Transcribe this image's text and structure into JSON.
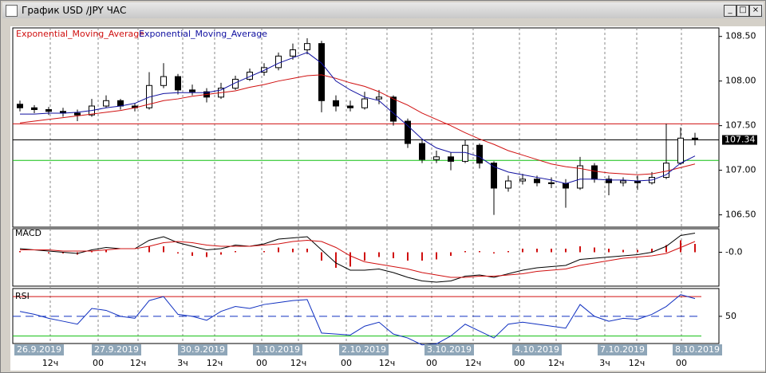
{
  "window": {
    "title": "График USD /JPY ЧАС"
  },
  "chart_data": [
    {
      "type": "candlestick",
      "ohlc": [
        [
          107.74,
          107.78,
          107.66,
          107.7
        ],
        [
          107.7,
          107.73,
          107.64,
          107.68
        ],
        [
          107.68,
          107.71,
          107.62,
          107.66
        ],
        [
          107.66,
          107.7,
          107.6,
          107.64
        ],
        [
          107.64,
          107.68,
          107.55,
          107.62
        ],
        [
          107.62,
          107.8,
          107.6,
          107.72
        ],
        [
          107.72,
          107.84,
          107.7,
          107.78
        ],
        [
          107.78,
          107.8,
          107.68,
          107.72
        ],
        [
          107.72,
          107.75,
          107.66,
          107.7
        ],
        [
          107.7,
          108.1,
          107.68,
          107.95
        ],
        [
          107.95,
          108.2,
          107.92,
          108.05
        ],
        [
          108.05,
          108.08,
          107.85,
          107.9
        ],
        [
          107.9,
          107.96,
          107.84,
          107.88
        ],
        [
          107.88,
          107.92,
          107.76,
          107.82
        ],
        [
          107.82,
          107.98,
          107.8,
          107.92
        ],
        [
          107.92,
          108.06,
          107.9,
          108.02
        ],
        [
          108.02,
          108.14,
          108.0,
          108.1
        ],
        [
          108.1,
          108.2,
          108.06,
          108.15
        ],
        [
          108.15,
          108.32,
          108.12,
          108.28
        ],
        [
          108.28,
          108.42,
          108.24,
          108.35
        ],
        [
          108.35,
          108.48,
          108.3,
          108.42
        ],
        [
          108.42,
          108.45,
          107.65,
          107.78
        ],
        [
          107.78,
          107.84,
          107.66,
          107.72
        ],
        [
          107.72,
          107.78,
          107.66,
          107.7
        ],
        [
          107.7,
          107.88,
          107.68,
          107.8
        ],
        [
          107.8,
          107.9,
          107.74,
          107.82
        ],
        [
          107.82,
          107.84,
          107.5,
          107.55
        ],
        [
          107.55,
          107.58,
          107.25,
          107.3
        ],
        [
          107.3,
          107.34,
          107.08,
          107.12
        ],
        [
          107.12,
          107.22,
          107.08,
          107.15
        ],
        [
          107.15,
          107.2,
          107.0,
          107.1
        ],
        [
          107.1,
          107.34,
          107.08,
          107.28
        ],
        [
          107.28,
          107.3,
          107.02,
          107.08
        ],
        [
          107.08,
          107.1,
          106.5,
          106.8
        ],
        [
          106.8,
          106.94,
          106.76,
          106.88
        ],
        [
          106.88,
          106.96,
          106.84,
          106.9
        ],
        [
          106.9,
          106.94,
          106.82,
          106.86
        ],
        [
          106.86,
          106.92,
          106.8,
          106.85
        ],
        [
          106.85,
          106.9,
          106.58,
          106.8
        ],
        [
          106.8,
          107.15,
          106.78,
          107.05
        ],
        [
          107.05,
          107.08,
          106.86,
          106.9
        ],
        [
          106.9,
          106.94,
          106.72,
          106.86
        ],
        [
          106.86,
          106.92,
          106.82,
          106.88
        ],
        [
          106.88,
          106.94,
          106.78,
          106.86
        ],
        [
          106.86,
          106.98,
          106.84,
          106.92
        ],
        [
          106.92,
          107.52,
          106.9,
          107.08
        ],
        [
          107.08,
          107.48,
          107.06,
          107.36
        ],
        [
          107.36,
          107.42,
          107.28,
          107.34
        ]
      ],
      "series": [
        {
          "name": "Exponential_Moving_Average",
          "color": "#d01010",
          "values": [
            107.53,
            107.55,
            107.57,
            107.59,
            107.61,
            107.63,
            107.65,
            107.67,
            107.7,
            107.74,
            107.78,
            107.8,
            107.83,
            107.85,
            107.87,
            107.89,
            107.93,
            107.96,
            108.0,
            108.03,
            108.06,
            108.07,
            108.03,
            107.98,
            107.94,
            107.88,
            107.8,
            107.73,
            107.64,
            107.57,
            107.5,
            107.42,
            107.35,
            107.29,
            107.22,
            107.17,
            107.12,
            107.07,
            107.04,
            107.02,
            106.99,
            106.97,
            106.96,
            106.95,
            106.96,
            106.99,
            107.03,
            107.07
          ]
        },
        {
          "name": "Exponential_Moving_Average",
          "color": "#1010a0",
          "values": [
            107.63,
            107.63,
            107.64,
            107.64,
            107.65,
            107.67,
            107.7,
            107.72,
            107.75,
            107.82,
            107.86,
            107.87,
            107.87,
            107.87,
            107.9,
            107.98,
            108.05,
            108.12,
            108.2,
            108.26,
            108.32,
            108.2,
            108.0,
            107.9,
            107.82,
            107.78,
            107.64,
            107.5,
            107.35,
            107.25,
            107.2,
            107.2,
            107.15,
            107.04,
            106.98,
            106.95,
            106.92,
            106.89,
            106.85,
            106.9,
            106.9,
            106.89,
            106.89,
            106.88,
            106.89,
            106.95,
            107.08,
            107.16
          ]
        }
      ],
      "levels": [
        {
          "value": 107.52,
          "color": "#d01010"
        },
        {
          "value": 107.34,
          "color": "#000000"
        },
        {
          "value": 107.11,
          "color": "#10c010"
        }
      ],
      "last_price": 107.34,
      "ylim": [
        106.38,
        108.56
      ],
      "yticks": [
        {
          "value": 106.5,
          "label": "106.50"
        },
        {
          "value": 107,
          "label": "107.00"
        },
        {
          "value": 107.5,
          "label": "107.50"
        },
        {
          "value": 108,
          "label": "108.00"
        },
        {
          "value": 108.5,
          "label": "108.50"
        }
      ]
    },
    {
      "type": "macd",
      "title": "MACD",
      "series": [
        {
          "color": "#000000",
          "values": [
            0.03,
            0.02,
            0.01,
            0.0,
            -0.01,
            0.02,
            0.04,
            0.03,
            0.03,
            0.1,
            0.13,
            0.08,
            0.05,
            0.02,
            0.03,
            0.06,
            0.05,
            0.07,
            0.11,
            0.12,
            0.13,
            0.02,
            -0.09,
            -0.15,
            -0.15,
            -0.14,
            -0.17,
            -0.21,
            -0.24,
            -0.25,
            -0.24,
            -0.2,
            -0.19,
            -0.21,
            -0.18,
            -0.15,
            -0.13,
            -0.12,
            -0.11,
            -0.06,
            -0.05,
            -0.04,
            -0.03,
            -0.02,
            0.0,
            0.05,
            0.14,
            0.16
          ]
        },
        {
          "color": "#d01010",
          "values": [
            0.02,
            0.02,
            0.02,
            0.01,
            0.01,
            0.01,
            0.02,
            0.03,
            0.03,
            0.05,
            0.08,
            0.09,
            0.08,
            0.06,
            0.05,
            0.05,
            0.05,
            0.06,
            0.07,
            0.09,
            0.1,
            0.09,
            0.04,
            -0.03,
            -0.08,
            -0.1,
            -0.12,
            -0.14,
            -0.17,
            -0.19,
            -0.21,
            -0.21,
            -0.2,
            -0.2,
            -0.19,
            -0.18,
            -0.16,
            -0.15,
            -0.14,
            -0.11,
            -0.09,
            -0.07,
            -0.05,
            -0.04,
            -0.03,
            -0.01,
            0.04,
            0.09
          ]
        }
      ],
      "histogram": {
        "color": "#d01010",
        "values": [
          0.01,
          0,
          -0.01,
          -0.01,
          -0.02,
          0.01,
          0.02,
          0,
          0,
          0.05,
          0.05,
          -0.01,
          -0.03,
          -0.04,
          -0.02,
          0.01,
          0,
          0.01,
          0.04,
          0.03,
          0.03,
          -0.07,
          -0.13,
          -0.12,
          -0.07,
          -0.04,
          -0.05,
          -0.07,
          -0.07,
          -0.06,
          -0.03,
          0.01,
          0.01,
          -0.01,
          0.01,
          0.03,
          0.03,
          0.03,
          0.03,
          0.05,
          0.04,
          0.03,
          0.02,
          0.02,
          0.03,
          0.06,
          0.1,
          0.07
        ]
      },
      "ylim": [
        -0.27,
        0.17
      ],
      "yticks": [
        {
          "value": 0,
          "label": "-0.0"
        }
      ]
    },
    {
      "type": "rsi",
      "title": "RSI",
      "series": [
        {
          "color": "#1030c0",
          "values": [
            55,
            52,
            48,
            45,
            42,
            58,
            56,
            50,
            48,
            66,
            70,
            52,
            50,
            46,
            55,
            60,
            58,
            62,
            64,
            66,
            67,
            33,
            32,
            31,
            40,
            44,
            32,
            28,
            21,
            22,
            30,
            42,
            35,
            28,
            42,
            44,
            42,
            40,
            38,
            62,
            50,
            45,
            48,
            47,
            52,
            60,
            72,
            68
          ]
        }
      ],
      "levels": [
        {
          "value": 70,
          "color": "#d01010"
        },
        {
          "value": 50,
          "color": "#1030c0"
        },
        {
          "value": 30,
          "color": "#10c010"
        }
      ],
      "ylim": [
        24,
        75
      ],
      "yticks": [
        50
      ]
    }
  ],
  "time_axis": {
    "dates": [
      "26.9.2019",
      "27.9.2019",
      "30.9.2019",
      "1.10.2019",
      "2.10.2019",
      "3.10.2019",
      "4.10.2019",
      "7.10.2019",
      "8.10.2019"
    ],
    "hours": [
      "12ч",
      "00",
      "12ч",
      "3ч",
      "12ч",
      "00",
      "12ч",
      "00",
      "12ч",
      "00",
      "12ч",
      "00",
      "12ч",
      "3ч",
      "12ч",
      "00"
    ]
  }
}
